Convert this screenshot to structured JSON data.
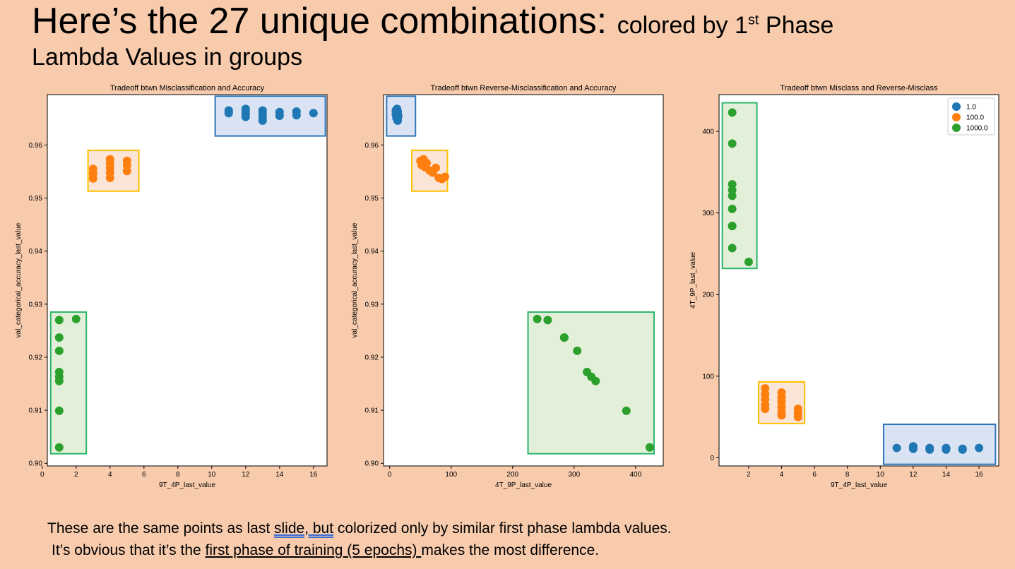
{
  "slide": {
    "title_main": "Here’s the 27 unique combinations:",
    "title_small_pre": "colored by 1",
    "title_sup": "st",
    "title_small_post": " Phase",
    "subtitle": "Lambda Values in groups",
    "body_line1_a": "These are the same points as last ",
    "body_line1_u": "slide, but",
    "body_line1_b": " colorized only by similar first phase lambda values.",
    "body_line2_a": "It’s obvious that it’s the ",
    "body_line2_u": "first phase of training  (5 epochs) ",
    "body_line2_b": "makes the most difference."
  },
  "colors": {
    "background": "#f8cbad",
    "blue": "#1f77b4",
    "orange": "#ff7f0e",
    "green": "#2ca02c",
    "box_blue_stroke": "#2e75b6",
    "box_blue_fill": "#dae3f3",
    "box_orange_stroke": "#ffc000",
    "box_orange_fill": "#fbe5d6",
    "box_green_stroke": "#2cb56a",
    "box_green_fill": "#e2f0d9"
  },
  "chart_data": [
    {
      "type": "scatter",
      "title": "Tradeoff btwn Misclassification and Accuracy",
      "xlabel": "9T_4P_last_value",
      "ylabel": "val_categorical_accuracy_last_value",
      "xlim": [
        0.3,
        16.8
      ],
      "ylim": [
        0.8995,
        0.9695
      ],
      "xticks": [
        0,
        2,
        4,
        6,
        8,
        10,
        12,
        14,
        16
      ],
      "yticks": [
        0.9,
        0.91,
        0.92,
        0.93,
        0.94,
        0.95,
        0.96
      ],
      "ytick_labels": [
        "0.90",
        "0.91",
        "0.92",
        "0.93",
        "0.94",
        "0.95",
        "0.96"
      ],
      "series": [
        {
          "name": "1.0",
          "color": "blue",
          "x": [
            11,
            11,
            12,
            12,
            12,
            12,
            13,
            13,
            13,
            13,
            14,
            14,
            15,
            15,
            16
          ],
          "y": [
            0.9665,
            0.966,
            0.9668,
            0.9663,
            0.9658,
            0.9653,
            0.9665,
            0.9658,
            0.9652,
            0.9646,
            0.9662,
            0.9655,
            0.9663,
            0.9656,
            0.966
          ]
        },
        {
          "name": "100.0",
          "color": "orange",
          "x": [
            3,
            3,
            3,
            4,
            4,
            4,
            4,
            4,
            5,
            5,
            5
          ],
          "y": [
            0.9555,
            0.9546,
            0.9537,
            0.9573,
            0.9565,
            0.9557,
            0.9548,
            0.9538,
            0.957,
            0.9562,
            0.9551
          ],
          "note": ""
        },
        {
          "name": "1000.0",
          "color": "green",
          "x": [
            1,
            1,
            1,
            1,
            1,
            1,
            1,
            1,
            2
          ],
          "y": [
            0.927,
            0.9237,
            0.9212,
            0.9172,
            0.9163,
            0.9155,
            0.9099,
            0.903,
            0.9272
          ]
        }
      ],
      "boxes": [
        {
          "color": "blue",
          "x": [
            10.2,
            16.7
          ],
          "y": [
            0.9617,
            0.9692
          ]
        },
        {
          "color": "orange",
          "x": [
            2.7,
            5.7
          ],
          "y": [
            0.9513,
            0.959
          ]
        },
        {
          "color": "green",
          "x": [
            0.5,
            2.6
          ],
          "y": [
            0.9018,
            0.9285
          ]
        }
      ],
      "legend": null
    },
    {
      "type": "scatter",
      "title": "Tradeoff btwn Reverse-Misclassification and Accuracy",
      "xlabel": "4T_9P_last_value",
      "ylabel": "val_categorical_accuracy_last_value",
      "xlim": [
        -10,
        445
      ],
      "ylim": [
        0.8995,
        0.9695
      ],
      "xticks": [
        0,
        100,
        200,
        300,
        400
      ],
      "yticks": [
        0.9,
        0.91,
        0.92,
        0.93,
        0.94,
        0.95,
        0.96
      ],
      "ytick_labels": [
        "0.90",
        "0.91",
        "0.92",
        "0.93",
        "0.94",
        "0.95",
        "0.96"
      ],
      "series": [
        {
          "name": "1.0",
          "color": "blue",
          "x": [
            10,
            11,
            12,
            13,
            11,
            12,
            13,
            10,
            12,
            14,
            11,
            13,
            12,
            13,
            12
          ],
          "y": [
            0.9665,
            0.9662,
            0.9668,
            0.966,
            0.9656,
            0.9653,
            0.9648,
            0.9658,
            0.9664,
            0.9655,
            0.9651,
            0.9663,
            0.9657,
            0.9646,
            0.966
          ]
        },
        {
          "name": "100.0",
          "color": "orange",
          "x": [
            50,
            55,
            60,
            52,
            58,
            65,
            70,
            75,
            80,
            85,
            90
          ],
          "y": [
            0.957,
            0.9573,
            0.9566,
            0.9562,
            0.9558,
            0.9552,
            0.9548,
            0.9557,
            0.9538,
            0.9536,
            0.954
          ]
        },
        {
          "name": "1000.0",
          "color": "green",
          "x": [
            240,
            257,
            284,
            284,
            305,
            321,
            328,
            335,
            385,
            423
          ],
          "y": [
            0.9272,
            0.927,
            0.9237,
            0.9237,
            0.9212,
            0.9172,
            0.9163,
            0.9155,
            0.9099,
            0.903
          ]
        }
      ],
      "boxes": [
        {
          "color": "blue",
          "x": [
            -5,
            42
          ],
          "y": [
            0.9617,
            0.9692
          ]
        },
        {
          "color": "orange",
          "x": [
            36,
            94
          ],
          "y": [
            0.9513,
            0.959
          ]
        },
        {
          "color": "green",
          "x": [
            225,
            430
          ],
          "y": [
            0.9018,
            0.9285
          ]
        }
      ],
      "legend": null
    },
    {
      "type": "scatter",
      "title": "Tradeoff btwn Misclass and Reverse-Misclass",
      "xlabel": "9T_4P_last_value",
      "ylabel": "4T_9P_last_value",
      "xlim": [
        0.2,
        17.2
      ],
      "ylim": [
        -10,
        445
      ],
      "xticks": [
        2,
        4,
        6,
        8,
        10,
        12,
        14,
        16
      ],
      "yticks": [
        0,
        100,
        200,
        300,
        400
      ],
      "ytick_labels": [
        "0",
        "100",
        "200",
        "300",
        "400"
      ],
      "series": [
        {
          "name": "1.0",
          "color": "blue",
          "x": [
            11,
            12,
            12,
            13,
            13,
            14,
            14,
            15,
            15,
            16
          ],
          "y": [
            12,
            14,
            11,
            12,
            10,
            12,
            10,
            11,
            10,
            12
          ]
        },
        {
          "name": "100.0",
          "color": "orange",
          "x": [
            3,
            3,
            3,
            3,
            3,
            4,
            4,
            4,
            4,
            4,
            4,
            4,
            5,
            5,
            5
          ],
          "y": [
            85,
            78,
            72,
            65,
            60,
            80,
            74,
            68,
            62,
            56,
            52,
            70,
            60,
            55,
            50
          ]
        },
        {
          "name": "1000.0",
          "color": "green",
          "x": [
            1,
            1,
            1,
            1,
            1,
            1,
            1,
            1,
            1,
            2
          ],
          "y": [
            423,
            385,
            335,
            328,
            321,
            305,
            284,
            284,
            257,
            240
          ]
        }
      ],
      "boxes": [
        {
          "color": "green",
          "x": [
            0.4,
            2.5
          ],
          "y": [
            232,
            435
          ]
        },
        {
          "color": "orange",
          "x": [
            2.6,
            5.4
          ],
          "y": [
            42,
            93
          ]
        },
        {
          "color": "blue",
          "x": [
            10.2,
            17.0
          ],
          "y": [
            -8,
            41
          ]
        }
      ],
      "legend": {
        "position": "top-right",
        "entries": [
          "1.0",
          "100.0",
          "1000.0"
        ]
      }
    }
  ]
}
